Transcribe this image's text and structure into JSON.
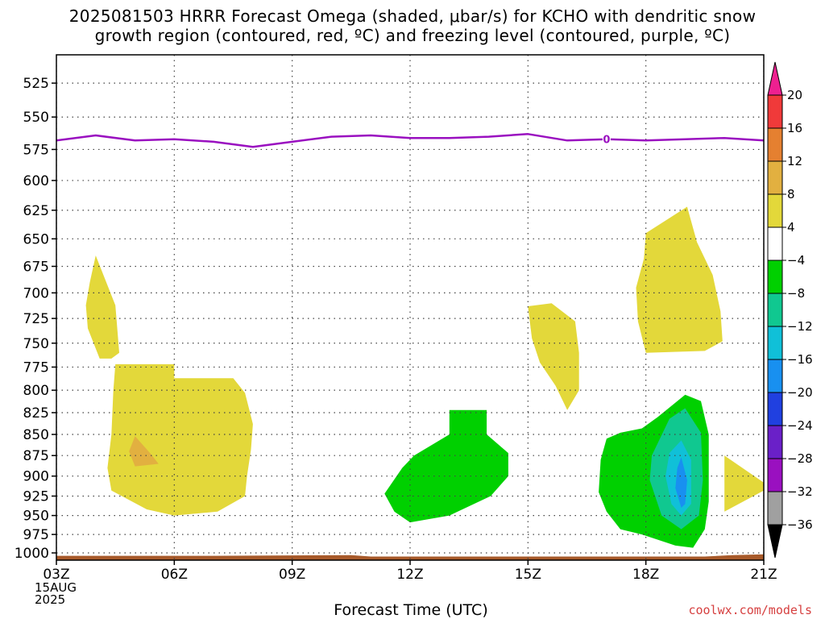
{
  "title": {
    "line1": "2025081503 HRRR Forecast Omega (shaded, μbar/s) for KCHO with dendritic snow",
    "line2": "growth region (contoured, red, ºC) and freezing level (contoured, purple, ºC)"
  },
  "credit": "coolwx.com/models",
  "chart_data": {
    "type": "area",
    "title": "2025081503 HRRR Forecast Omega (shaded, μbar/s) for KCHO with dendritic snow growth region (contoured, red, ºC) and freezing level (contoured, purple, ºC)",
    "xlabel": "Forecast Time (UTC)",
    "ylabel": "",
    "x_ticks": [
      {
        "hour": 3,
        "label": "03Z"
      },
      {
        "hour": 6,
        "label": "06Z"
      },
      {
        "hour": 9,
        "label": "09Z"
      },
      {
        "hour": 12,
        "label": "12Z"
      },
      {
        "hour": 15,
        "label": "15Z"
      },
      {
        "hour": 18,
        "label": "18Z"
      },
      {
        "hour": 21,
        "label": "21Z"
      }
    ],
    "date_label": [
      "15AUG",
      "2025"
    ],
    "xlim": [
      3,
      21
    ],
    "y_ticks": [
      525,
      550,
      575,
      600,
      625,
      650,
      675,
      700,
      725,
      750,
      775,
      800,
      825,
      850,
      875,
      900,
      925,
      950,
      975,
      1000
    ],
    "ylim": [
      1010,
      505
    ],
    "yscale": "log",
    "grid": true,
    "colorbar": {
      "labels": [
        "20",
        "16",
        "12",
        "8",
        "4",
        "−4",
        "−8",
        "−12",
        "−16",
        "−20",
        "−24",
        "−28",
        "−32",
        "−36"
      ],
      "colors": [
        "#ee2090",
        "#f03a3a",
        "#e58030",
        "#e2b040",
        "#e3d83a",
        "#ffffff",
        "#00d000",
        "#10c890",
        "#10c0d8",
        "#1890f0",
        "#2040e0",
        "#6a20c8",
        "#9a10c0",
        "#a0a0a0",
        "#000000"
      ]
    },
    "freezing_level": {
      "label": "0",
      "color": "#9a10c0",
      "label_hour": 17,
      "points": [
        [
          3,
          568
        ],
        [
          4,
          564
        ],
        [
          5,
          568
        ],
        [
          6,
          567
        ],
        [
          7,
          569
        ],
        [
          8,
          573
        ],
        [
          9,
          569
        ],
        [
          10,
          565
        ],
        [
          11,
          564
        ],
        [
          12,
          566
        ],
        [
          13,
          566
        ],
        [
          14,
          565
        ],
        [
          15,
          563
        ],
        [
          16,
          568
        ],
        [
          17,
          567
        ],
        [
          18,
          568
        ],
        [
          19,
          567
        ],
        [
          20,
          566
        ],
        [
          21,
          568
        ]
      ]
    },
    "omega_regions": [
      {
        "range": "4 to 8",
        "color": "#e3d83a",
        "points": [
          [
            4.0,
            665
          ],
          [
            4.5,
            712
          ],
          [
            4.6,
            760
          ],
          [
            4.4,
            766
          ],
          [
            4.1,
            766
          ],
          [
            3.8,
            735
          ],
          [
            3.75,
            712
          ],
          [
            3.85,
            690
          ]
        ]
      },
      {
        "range": "4 to 8",
        "color": "#e3d83a",
        "points": [
          [
            4.5,
            772
          ],
          [
            6.0,
            772
          ],
          [
            6.0,
            787
          ],
          [
            6.35,
            787
          ],
          [
            7.5,
            787
          ],
          [
            7.8,
            803
          ],
          [
            8.0,
            838
          ],
          [
            7.95,
            868
          ],
          [
            7.85,
            900
          ],
          [
            7.8,
            925
          ],
          [
            7.1,
            945
          ],
          [
            6.0,
            950
          ],
          [
            5.3,
            942
          ],
          [
            4.4,
            918
          ],
          [
            4.3,
            890
          ],
          [
            4.4,
            850
          ],
          [
            4.45,
            800
          ]
        ]
      },
      {
        "range": "8 to 12",
        "color": "#e2b040",
        "points": [
          [
            5.0,
            852
          ],
          [
            5.4,
            873
          ],
          [
            5.6,
            885
          ],
          [
            5.0,
            888
          ],
          [
            4.85,
            870
          ]
        ]
      },
      {
        "range": "4 to 8",
        "color": "#e3d83a",
        "points": [
          [
            15.0,
            713
          ],
          [
            15.6,
            710
          ],
          [
            16.2,
            728
          ],
          [
            16.3,
            760
          ],
          [
            16.3,
            800
          ],
          [
            16.0,
            822
          ],
          [
            15.7,
            795
          ],
          [
            15.3,
            770
          ],
          [
            15.1,
            745
          ]
        ]
      },
      {
        "range": "4 to 8",
        "color": "#e3d83a",
        "points": [
          [
            18.0,
            645
          ],
          [
            19.05,
            622
          ],
          [
            19.3,
            653
          ],
          [
            19.7,
            683
          ],
          [
            19.9,
            718
          ],
          [
            19.95,
            748
          ],
          [
            19.5,
            758
          ],
          [
            18.0,
            760
          ],
          [
            17.8,
            728
          ],
          [
            17.75,
            695
          ],
          [
            17.95,
            668
          ]
        ]
      },
      {
        "range": "4 to 8",
        "color": "#e3d83a",
        "points": [
          [
            20.0,
            875
          ],
          [
            21.0,
            908
          ],
          [
            21.0,
            918
          ],
          [
            20.0,
            945
          ]
        ]
      },
      {
        "range": "-8 to -4",
        "color": "#00d000",
        "points": [
          [
            13.0,
            822
          ],
          [
            13.95,
            822
          ],
          [
            13.95,
            850
          ],
          [
            14.5,
            872
          ],
          [
            14.5,
            900
          ],
          [
            14.05,
            925
          ],
          [
            13.0,
            950
          ],
          [
            12.0,
            959
          ],
          [
            11.6,
            945
          ],
          [
            11.35,
            922
          ],
          [
            11.8,
            890
          ],
          [
            12.1,
            875
          ],
          [
            13.0,
            850
          ]
        ]
      },
      {
        "range": "-8 to -4",
        "color": "#00d000",
        "points": [
          [
            17.35,
            848
          ],
          [
            17.9,
            843
          ],
          [
            18.3,
            830
          ],
          [
            19.0,
            805
          ],
          [
            19.4,
            812
          ],
          [
            19.6,
            850
          ],
          [
            19.6,
            932
          ],
          [
            19.5,
            968
          ],
          [
            19.2,
            993
          ],
          [
            18.75,
            990
          ],
          [
            17.9,
            975
          ],
          [
            17.35,
            968
          ],
          [
            17.0,
            945
          ],
          [
            16.8,
            920
          ],
          [
            16.85,
            880
          ],
          [
            17.0,
            855
          ]
        ]
      },
      {
        "range": "-12 to -8",
        "color": "#10c890",
        "points": [
          [
            19.0,
            820
          ],
          [
            19.4,
            848
          ],
          [
            19.45,
            905
          ],
          [
            19.35,
            950
          ],
          [
            18.9,
            968
          ],
          [
            18.4,
            950
          ],
          [
            18.1,
            905
          ],
          [
            18.15,
            875
          ],
          [
            18.6,
            832
          ]
        ]
      },
      {
        "range": "-16 to -12",
        "color": "#10c0d8",
        "points": [
          [
            18.9,
            857
          ],
          [
            19.15,
            880
          ],
          [
            19.15,
            935
          ],
          [
            18.9,
            950
          ],
          [
            18.65,
            935
          ],
          [
            18.5,
            900
          ],
          [
            18.6,
            872
          ]
        ]
      },
      {
        "range": "-20 to -16",
        "color": "#1890f0",
        "points": [
          [
            18.9,
            877
          ],
          [
            19.05,
            905
          ],
          [
            19.0,
            935
          ],
          [
            18.9,
            940
          ],
          [
            18.75,
            915
          ],
          [
            18.8,
            890
          ]
        ]
      }
    ],
    "terrain": {
      "color": "#a85a2a",
      "points": [
        [
          3,
          1004
        ],
        [
          7,
          1004
        ],
        [
          10.5,
          1003
        ],
        [
          11,
          1005
        ],
        [
          15,
          1005
        ],
        [
          18,
          1005
        ],
        [
          19.5,
          1005
        ],
        [
          20.2,
          1003
        ],
        [
          21,
          1002
        ]
      ]
    }
  }
}
